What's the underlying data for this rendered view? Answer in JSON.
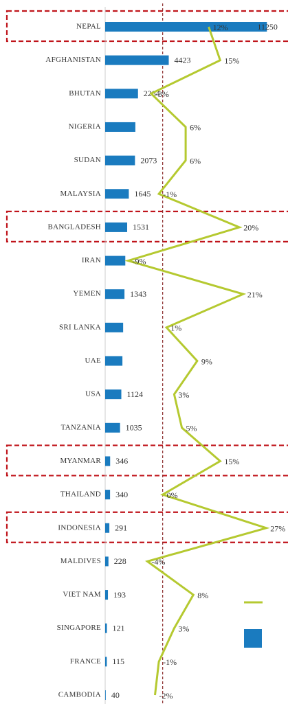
{
  "chart_data": {
    "type": "bar-line",
    "categories": [
      "NEPAL",
      "AFGHANISTAN",
      "BHUTAN",
      "NIGERIA",
      "SUDAN",
      "MALAYSIA",
      "BANGLADESH",
      "IRAN",
      "YEMEN",
      "SRI LANKA",
      "UAE",
      "USA",
      "TANZANIA",
      "MYANMAR",
      "THAILAND",
      "INDONESIA",
      "MALDIVES",
      "VIET NAM",
      "SINGAPORE",
      "FRANCE",
      "CAMBODIA"
    ],
    "series": [
      {
        "color": "#1a7bbf",
        "values": [
          11250,
          4423,
          2284,
          2100,
          2073,
          1645,
          1531,
          1400,
          1343,
          1250,
          1200,
          1124,
          1035,
          346,
          340,
          291,
          228,
          193,
          121,
          115,
          40
        ],
        "value_labels": [
          "11250",
          "4423",
          "2284",
          null,
          "2073",
          "1645",
          "1531",
          null,
          "1343",
          null,
          null,
          "1124",
          "1035",
          "346",
          "340",
          "291",
          "228",
          "193",
          "121",
          "115",
          "40"
        ]
      },
      {
        "color": "#b5c930",
        "axis": "x2",
        "values": [
          12,
          15,
          -3,
          6,
          6,
          -1,
          20,
          -9,
          21,
          1,
          9,
          3,
          5,
          15,
          0,
          27,
          -4,
          8,
          3,
          -1,
          -2
        ],
        "value_labels": [
          "12%",
          "15%",
          "-3%",
          "6%",
          "6%",
          "-1%",
          "20%",
          "-9%",
          "21%",
          "1%",
          "9%",
          "3%",
          "5%",
          "15%",
          "0%",
          "27%",
          "-4%",
          "8%",
          "3%",
          "-1%",
          "-2%"
        ]
      }
    ],
    "xlim": [
      0,
      12000
    ],
    "x2lim": [
      -15,
      30
    ],
    "highlight": [
      0,
      6,
      13,
      15
    ],
    "highlight_color": "#c0141b"
  }
}
